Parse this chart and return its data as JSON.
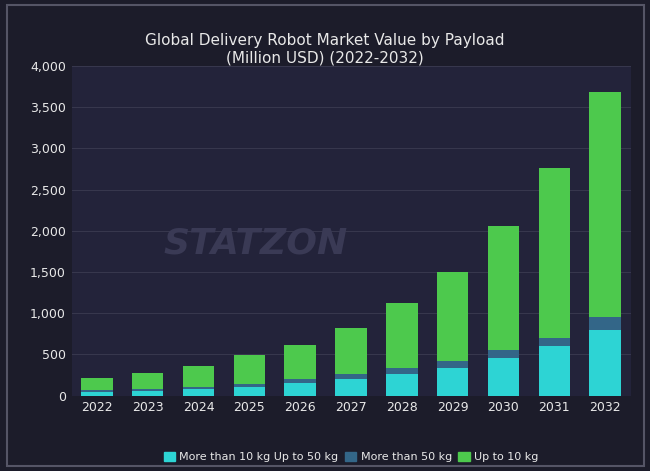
{
  "title": "Global Delivery Robot Market Value by Payload\n(Million USD) (2022-2032)",
  "years": [
    "2022",
    "2023",
    "2024",
    "2025",
    "2026",
    "2027",
    "2028",
    "2029",
    "2030",
    "2031",
    "2032"
  ],
  "more_than_10kg_up_to_50kg": [
    50,
    60,
    80,
    100,
    150,
    200,
    260,
    340,
    460,
    600,
    800
  ],
  "more_than_50kg": [
    20,
    25,
    30,
    40,
    50,
    60,
    70,
    80,
    90,
    100,
    150
  ],
  "up_to_10kg": [
    140,
    185,
    245,
    355,
    420,
    565,
    790,
    1085,
    1510,
    2060,
    2730
  ],
  "color_more_than_10kg_up_to_50kg": "#2dd4d4",
  "color_more_than_50kg": "#336688",
  "color_up_to_10kg": "#4dc94d",
  "background_color": "#1c1c2a",
  "plot_background": "#23233a",
  "text_color": "#e8e8e8",
  "grid_color": "#38384e",
  "border_color": "#555566",
  "ylim": [
    0,
    4000
  ],
  "yticks": [
    0,
    500,
    1000,
    1500,
    2000,
    2500,
    3000,
    3500,
    4000
  ],
  "legend_labels": [
    "More than 10 kg Up to 50 kg",
    "More than 50 kg",
    "Up to 10 kg"
  ],
  "watermark": "STATZON",
  "watermark_color": "#3a3a55",
  "title_fontsize": 11,
  "tick_fontsize": 9,
  "legend_fontsize": 8
}
